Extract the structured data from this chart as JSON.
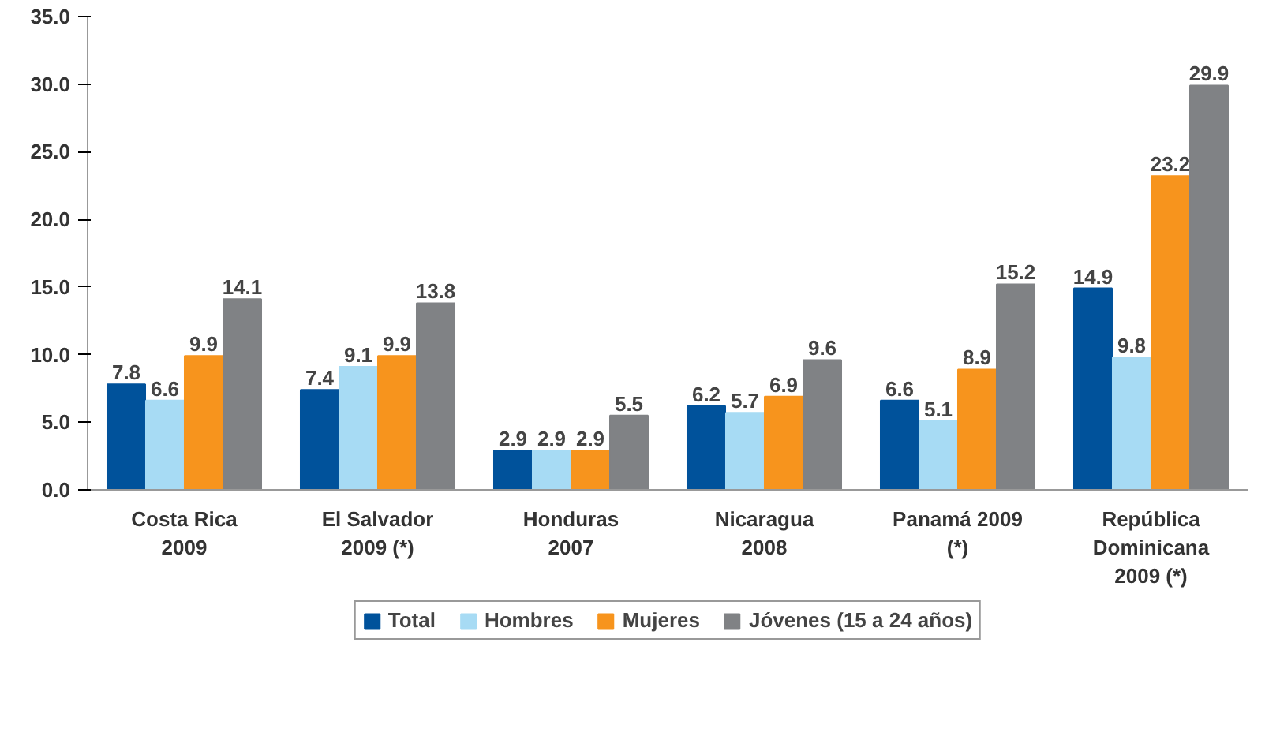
{
  "chart_data": {
    "type": "bar",
    "categories": [
      "Costa Rica\n2009",
      "El Salvador\n2009 (*)",
      "Honduras\n2007",
      "Nicaragua\n2008",
      "Panamá 2009\n(*)",
      "República\nDominicana\n2009 (*)"
    ],
    "series": [
      {
        "name": "Total",
        "color": "#00529b",
        "values": [
          7.8,
          7.4,
          2.9,
          6.2,
          6.6,
          14.9
        ]
      },
      {
        "name": "Hombres",
        "color": "#a7dbf4",
        "values": [
          6.6,
          9.1,
          2.9,
          5.7,
          5.1,
          9.8
        ]
      },
      {
        "name": "Mujeres",
        "color": "#f7941d",
        "values": [
          9.9,
          9.9,
          2.9,
          6.9,
          8.9,
          23.2
        ]
      },
      {
        "name": "Jóvenes (15 a 24 años)",
        "color": "#808285",
        "values": [
          14.1,
          13.8,
          5.5,
          9.6,
          15.2,
          29.9
        ]
      }
    ],
    "ylim": [
      0,
      35
    ],
    "yticks": [
      {
        "value": 0,
        "label": "0.0"
      },
      {
        "value": 5,
        "label": "5.0"
      },
      {
        "value": 10,
        "label": "10.0"
      },
      {
        "value": 15,
        "label": "15.0"
      },
      {
        "value": 20,
        "label": "20.0"
      },
      {
        "value": 25,
        "label": "25.0"
      },
      {
        "value": 30,
        "label": "30.0"
      },
      {
        "value": 35,
        "label": "35.0"
      }
    ],
    "grid": false,
    "legend": "bottom",
    "data_labels": true
  }
}
